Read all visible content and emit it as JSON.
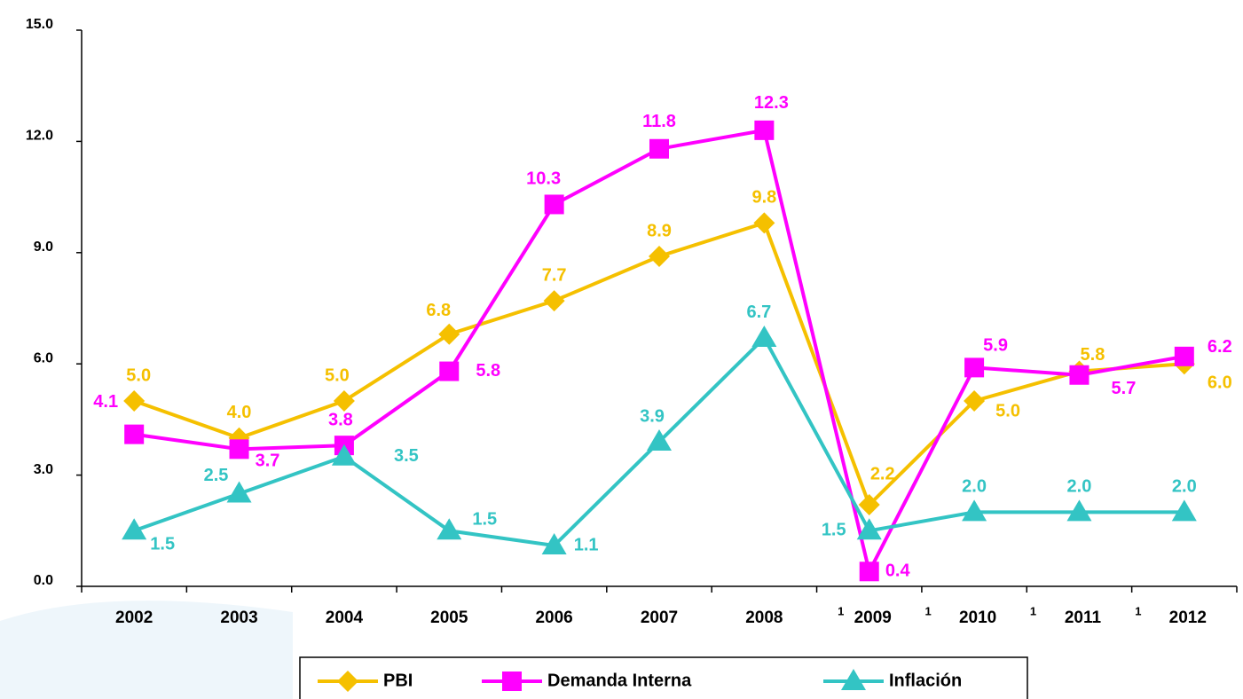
{
  "chart_data": {
    "type": "line",
    "categories": [
      "2002",
      "2003",
      "2004",
      "2005",
      "2006",
      "2007",
      "2008",
      "2009",
      "2010",
      "2011",
      "2012"
    ],
    "category_notes": [
      null,
      null,
      null,
      null,
      null,
      null,
      null,
      "1",
      "1",
      "1",
      "1"
    ],
    "series": [
      {
        "name": "PBI",
        "color": "#f5c000",
        "marker": "diamond",
        "values": [
          5.0,
          4.0,
          5.0,
          6.8,
          7.7,
          8.9,
          9.8,
          2.2,
          5.0,
          5.8,
          6.0
        ],
        "value_labels": [
          "5.0",
          "4.0",
          "5.0",
          "6.8",
          "7.7",
          "8.9",
          "9.8",
          "2.2",
          "5.0",
          "5.8",
          "6.0"
        ]
      },
      {
        "name": "Demanda Interna",
        "color": "#ff00ff",
        "marker": "square",
        "values": [
          4.1,
          3.7,
          3.8,
          5.8,
          10.3,
          11.8,
          12.3,
          0.4,
          5.9,
          5.7,
          6.2
        ],
        "value_labels": [
          "4.1",
          "3.7",
          "3.8",
          "5.8",
          "10.3",
          "11.8",
          "12.3",
          "0.4",
          "5.9",
          "5.7",
          "6.2"
        ]
      },
      {
        "name": "Inflación",
        "color": "#33c4c4",
        "marker": "triangle",
        "values": [
          1.5,
          2.5,
          3.5,
          1.5,
          1.1,
          3.9,
          6.7,
          1.5,
          2.0,
          2.0,
          2.0
        ],
        "value_labels": [
          "1.5",
          "2.5",
          "3.5",
          "1.5",
          "1.1",
          "3.9",
          "6.7",
          "1.5",
          "2.0",
          "2.0",
          "2.0"
        ]
      }
    ],
    "ylim": [
      0,
      15
    ],
    "yticks": [
      {
        "value": 0,
        "label": "0.0"
      },
      {
        "value": 3,
        "label": "3.0"
      },
      {
        "value": 6,
        "label": "6.0"
      },
      {
        "value": 9,
        "label": "9.0"
      },
      {
        "value": 12,
        "label": "12.0"
      },
      {
        "value": 15,
        "label": "15.0"
      }
    ],
    "legend": "bottom"
  }
}
